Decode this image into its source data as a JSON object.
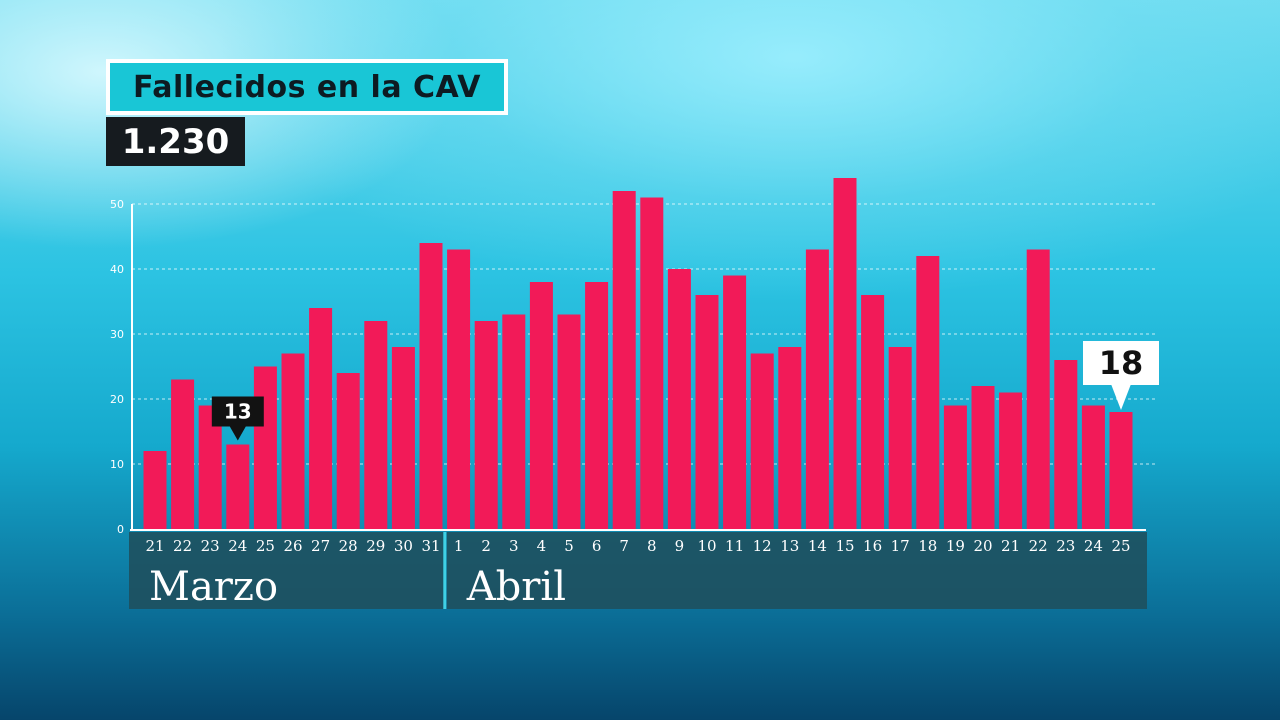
{
  "header": {
    "title": "Fallecidos en la CAV",
    "total": "1.230"
  },
  "colors": {
    "bar": "#f21a58",
    "accent": "#19c6d6",
    "panel": "#1f4f5c"
  },
  "chart_data": {
    "type": "bar",
    "title": "Fallecidos en la CAV",
    "xlabel": "",
    "ylabel": "",
    "ylim": [
      0,
      50
    ],
    "yticks": [
      0,
      10,
      20,
      30,
      40,
      50
    ],
    "grid": true,
    "categories": [
      "21",
      "22",
      "23",
      "24",
      "25",
      "26",
      "27",
      "28",
      "29",
      "30",
      "31",
      "1",
      "2",
      "3",
      "4",
      "5",
      "6",
      "7",
      "8",
      "9",
      "10",
      "11",
      "12",
      "13",
      "14",
      "15",
      "16",
      "17",
      "18",
      "19",
      "20",
      "21",
      "22",
      "23",
      "24",
      "25"
    ],
    "values": [
      12,
      23,
      19,
      13,
      25,
      27,
      34,
      24,
      32,
      28,
      44,
      43,
      32,
      33,
      38,
      33,
      38,
      52,
      51,
      40,
      36,
      39,
      27,
      28,
      43,
      54,
      36,
      28,
      42,
      19,
      22,
      21,
      43,
      26,
      19,
      18
    ],
    "months": [
      {
        "label": "Marzo",
        "start": 0,
        "end": 10
      },
      {
        "label": "Abril",
        "start": 11,
        "end": 35
      }
    ],
    "annotations": [
      {
        "index": 3,
        "text": "13",
        "style": "dark"
      },
      {
        "index": 35,
        "text": "18",
        "style": "light"
      }
    ]
  }
}
